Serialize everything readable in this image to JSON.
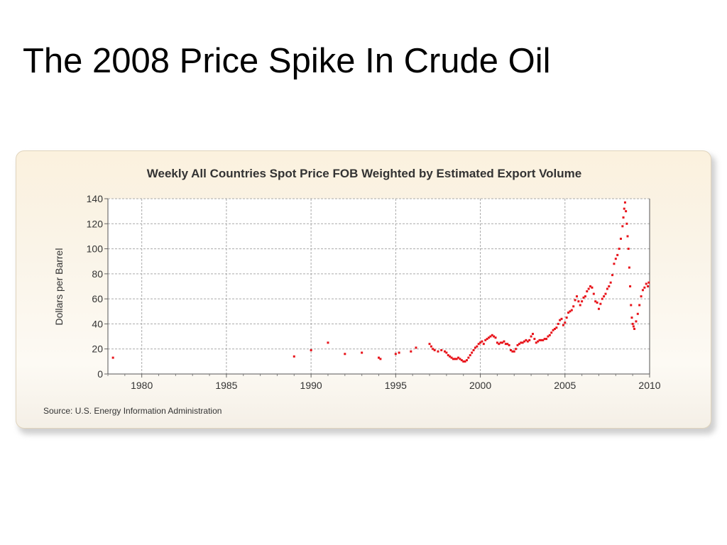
{
  "slide": {
    "title": "The 2008 Price Spike In Crude Oil"
  },
  "chart_data": {
    "type": "scatter",
    "title": "Weekly All Countries Spot Price FOB Weighted by Estimated Export Volume",
    "xlabel": "",
    "ylabel": "Dollars per Barrel",
    "source": "Source: U.S. Energy Information Administration",
    "xlim": [
      1978,
      2010
    ],
    "ylim": [
      0,
      140
    ],
    "xticks": [
      1980,
      1985,
      1990,
      1995,
      2000,
      2005,
      2010
    ],
    "yticks": [
      0,
      20,
      40,
      60,
      80,
      100,
      120,
      140
    ],
    "grid": true,
    "marker_color": "#e8141b",
    "points": [
      [
        1978.3,
        13
      ],
      [
        1989.0,
        14
      ],
      [
        1990.0,
        19
      ],
      [
        1991.0,
        25
      ],
      [
        1992.0,
        16
      ],
      [
        1993.0,
        17
      ],
      [
        1994.0,
        13
      ],
      [
        1994.1,
        12
      ],
      [
        1995.0,
        16
      ],
      [
        1995.2,
        17
      ],
      [
        1995.9,
        18
      ],
      [
        1996.2,
        21
      ],
      [
        1997.0,
        24
      ],
      [
        1997.1,
        22
      ],
      [
        1997.2,
        20
      ],
      [
        1997.3,
        19
      ],
      [
        1997.5,
        18
      ],
      [
        1997.7,
        19
      ],
      [
        1997.9,
        18
      ],
      [
        1998.0,
        17
      ],
      [
        1998.1,
        15
      ],
      [
        1998.2,
        14
      ],
      [
        1998.3,
        13
      ],
      [
        1998.4,
        12
      ],
      [
        1998.5,
        12
      ],
      [
        1998.6,
        12
      ],
      [
        1998.7,
        13
      ],
      [
        1998.8,
        12
      ],
      [
        1998.9,
        11
      ],
      [
        1999.0,
        10
      ],
      [
        1999.1,
        10
      ],
      [
        1999.2,
        11
      ],
      [
        1999.3,
        13
      ],
      [
        1999.4,
        15
      ],
      [
        1999.5,
        17
      ],
      [
        1999.6,
        19
      ],
      [
        1999.7,
        21
      ],
      [
        1999.8,
        22
      ],
      [
        1999.9,
        24
      ],
      [
        2000.0,
        25
      ],
      [
        2000.1,
        26
      ],
      [
        2000.2,
        24
      ],
      [
        2000.3,
        27
      ],
      [
        2000.4,
        28
      ],
      [
        2000.5,
        29
      ],
      [
        2000.6,
        30
      ],
      [
        2000.7,
        31
      ],
      [
        2000.8,
        30
      ],
      [
        2000.9,
        29
      ],
      [
        2001.0,
        25
      ],
      [
        2001.1,
        24
      ],
      [
        2001.2,
        25
      ],
      [
        2001.3,
        25
      ],
      [
        2001.4,
        26
      ],
      [
        2001.5,
        24
      ],
      [
        2001.6,
        24
      ],
      [
        2001.7,
        23
      ],
      [
        2001.8,
        19
      ],
      [
        2001.9,
        18
      ],
      [
        2002.0,
        18
      ],
      [
        2002.1,
        20
      ],
      [
        2002.2,
        23
      ],
      [
        2002.3,
        24
      ],
      [
        2002.4,
        25
      ],
      [
        2002.5,
        25
      ],
      [
        2002.6,
        26
      ],
      [
        2002.7,
        27
      ],
      [
        2002.8,
        26
      ],
      [
        2002.9,
        27
      ],
      [
        2003.0,
        30
      ],
      [
        2003.1,
        32
      ],
      [
        2003.2,
        28
      ],
      [
        2003.3,
        25
      ],
      [
        2003.4,
        26
      ],
      [
        2003.5,
        27
      ],
      [
        2003.6,
        27
      ],
      [
        2003.7,
        27
      ],
      [
        2003.8,
        28
      ],
      [
        2003.9,
        28
      ],
      [
        2004.0,
        30
      ],
      [
        2004.1,
        31
      ],
      [
        2004.2,
        33
      ],
      [
        2004.3,
        35
      ],
      [
        2004.4,
        36
      ],
      [
        2004.5,
        37
      ],
      [
        2004.6,
        40
      ],
      [
        2004.7,
        43
      ],
      [
        2004.8,
        44
      ],
      [
        2004.9,
        39
      ],
      [
        2005.0,
        41
      ],
      [
        2005.1,
        45
      ],
      [
        2005.2,
        49
      ],
      [
        2005.3,
        50
      ],
      [
        2005.4,
        51
      ],
      [
        2005.5,
        54
      ],
      [
        2005.6,
        59
      ],
      [
        2005.7,
        62
      ],
      [
        2005.8,
        58
      ],
      [
        2005.9,
        55
      ],
      [
        2006.0,
        58
      ],
      [
        2006.1,
        61
      ],
      [
        2006.2,
        62
      ],
      [
        2006.3,
        66
      ],
      [
        2006.4,
        68
      ],
      [
        2006.5,
        70
      ],
      [
        2006.6,
        69
      ],
      [
        2006.7,
        64
      ],
      [
        2006.8,
        58
      ],
      [
        2006.9,
        57
      ],
      [
        2007.0,
        52
      ],
      [
        2007.1,
        56
      ],
      [
        2007.2,
        60
      ],
      [
        2007.3,
        62
      ],
      [
        2007.4,
        64
      ],
      [
        2007.5,
        68
      ],
      [
        2007.6,
        70
      ],
      [
        2007.7,
        73
      ],
      [
        2007.8,
        79
      ],
      [
        2007.9,
        88
      ],
      [
        2008.0,
        92
      ],
      [
        2008.1,
        95
      ],
      [
        2008.2,
        100
      ],
      [
        2008.3,
        108
      ],
      [
        2008.4,
        118
      ],
      [
        2008.45,
        125
      ],
      [
        2008.5,
        132
      ],
      [
        2008.55,
        137
      ],
      [
        2008.6,
        130
      ],
      [
        2008.65,
        120
      ],
      [
        2008.7,
        110
      ],
      [
        2008.75,
        100
      ],
      [
        2008.8,
        85
      ],
      [
        2008.85,
        70
      ],
      [
        2008.9,
        55
      ],
      [
        2008.95,
        45
      ],
      [
        2009.0,
        40
      ],
      [
        2009.05,
        38
      ],
      [
        2009.1,
        36
      ],
      [
        2009.2,
        42
      ],
      [
        2009.3,
        48
      ],
      [
        2009.4,
        55
      ],
      [
        2009.5,
        62
      ],
      [
        2009.6,
        67
      ],
      [
        2009.7,
        69
      ],
      [
        2009.8,
        72
      ],
      [
        2009.9,
        70
      ],
      [
        2009.95,
        73
      ]
    ]
  }
}
